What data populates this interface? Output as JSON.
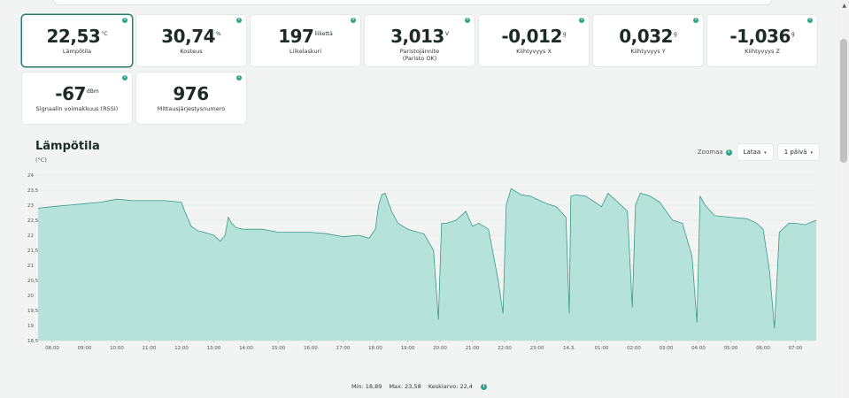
{
  "tiles": [
    {
      "value": "22,53",
      "unit": "°C",
      "label": "Lämpötila",
      "selected": true
    },
    {
      "value": "30,74",
      "unit": "%",
      "label": "Kosteus"
    },
    {
      "value": "197",
      "unit": "liikettä",
      "label": "Liikelaskuri"
    },
    {
      "value": "3,013",
      "unit": "V",
      "label": "Paristojännite\n(Paristo OK)"
    },
    {
      "value": "-0,012",
      "unit": "g",
      "label": "Kiihtyvyys X"
    },
    {
      "value": "0,032",
      "unit": "g",
      "label": "Kiihtyvyys Y"
    },
    {
      "value": "-1,036",
      "unit": "g",
      "label": "Kiihtyvyys Z"
    },
    {
      "value": "-67",
      "unit": "dBm",
      "label": "Signaalin voimakkuus (RSSI)"
    },
    {
      "value": "976",
      "unit": "",
      "label": "Mittausjärjestysnumero"
    }
  ],
  "info_glyph": "i",
  "controls": {
    "zoom_label": "Zoomaa",
    "load_label": "Lataa",
    "range_label": "1 päivä",
    "caret": "▾"
  },
  "stats": {
    "min": "Min: 18,89",
    "max": "Max: 23,58",
    "avg": "Keskiarvo: 22,4"
  },
  "colors": {
    "fill": "#b6e3d9",
    "line": "#3a9a84",
    "accent": "#2fa38a",
    "grid": "#dfe3e2"
  },
  "chart_data": {
    "type": "area",
    "title": "Lämpötila",
    "ylabel": "(°C)",
    "ylim": [
      18.5,
      24
    ],
    "yticks": [
      "24",
      "23,5",
      "23",
      "22,5",
      "22",
      "21,5",
      "21",
      "20,5",
      "20",
      "19,5",
      "19",
      "18,5"
    ],
    "xticks": [
      "08:00",
      "09:00",
      "10:00",
      "11:00",
      "12:00",
      "13:00",
      "14:00",
      "15:00",
      "16:00",
      "17:00",
      "18:00",
      "19:00",
      "20:00",
      "21:00",
      "22:00",
      "23:00",
      "14.3.",
      "01:00",
      "02:00",
      "03:00",
      "04:00",
      "05:00",
      "06:00",
      "07:00"
    ],
    "x_start_hours": 7.6,
    "series": [
      {
        "x": [
          7.6,
          8.0,
          8.5,
          9.0,
          9.5,
          10.0,
          10.5,
          11.0,
          11.5,
          12.0,
          12.1,
          12.3,
          12.5,
          12.7,
          13.0,
          13.2,
          13.35,
          13.45,
          13.55,
          13.7,
          13.9,
          14.2,
          14.5,
          15.0,
          15.5,
          16.0,
          16.5,
          17.0,
          17.5,
          17.8,
          18.0,
          18.1,
          18.2,
          18.3,
          18.5,
          18.7,
          19.0,
          19.5,
          19.8,
          19.95,
          20.05,
          20.2,
          20.5,
          20.8,
          21.0,
          21.2,
          21.5,
          21.8,
          21.95,
          22.05,
          22.2,
          22.5,
          22.8,
          23.0,
          23.3,
          23.6,
          23.9,
          24.0,
          24.05,
          24.2,
          24.5,
          24.8,
          25.0,
          25.2,
          25.5,
          25.8,
          25.95,
          26.05,
          26.2,
          26.5,
          26.8,
          27.0,
          27.2,
          27.5,
          27.8,
          27.95,
          28.05,
          28.2,
          28.5,
          29.0,
          29.5,
          29.8,
          30.0,
          30.2,
          30.35,
          30.5,
          30.8,
          31.0,
          31.3,
          31.6
        ],
        "y": [
          22.9,
          22.95,
          23.0,
          23.05,
          23.1,
          23.2,
          23.15,
          23.15,
          23.15,
          23.1,
          22.8,
          22.3,
          22.15,
          22.1,
          22.0,
          21.8,
          22.0,
          22.6,
          22.4,
          22.25,
          22.2,
          22.2,
          22.2,
          22.1,
          22.1,
          22.1,
          22.05,
          21.95,
          22.0,
          21.9,
          22.2,
          23.0,
          23.35,
          23.4,
          22.8,
          22.4,
          22.2,
          22.05,
          21.5,
          19.2,
          22.4,
          22.4,
          22.5,
          22.8,
          22.3,
          22.4,
          22.2,
          20.5,
          19.4,
          23.0,
          23.55,
          23.35,
          23.3,
          23.2,
          23.05,
          22.95,
          22.6,
          19.4,
          23.3,
          23.35,
          23.3,
          23.1,
          22.95,
          23.4,
          23.1,
          22.8,
          19.6,
          23.0,
          23.4,
          23.3,
          23.1,
          22.8,
          22.5,
          22.4,
          21.3,
          19.1,
          23.3,
          23.0,
          22.65,
          22.6,
          22.55,
          22.4,
          22.2,
          20.8,
          18.9,
          22.1,
          22.4,
          22.4,
          22.35,
          22.5
        ]
      }
    ]
  }
}
